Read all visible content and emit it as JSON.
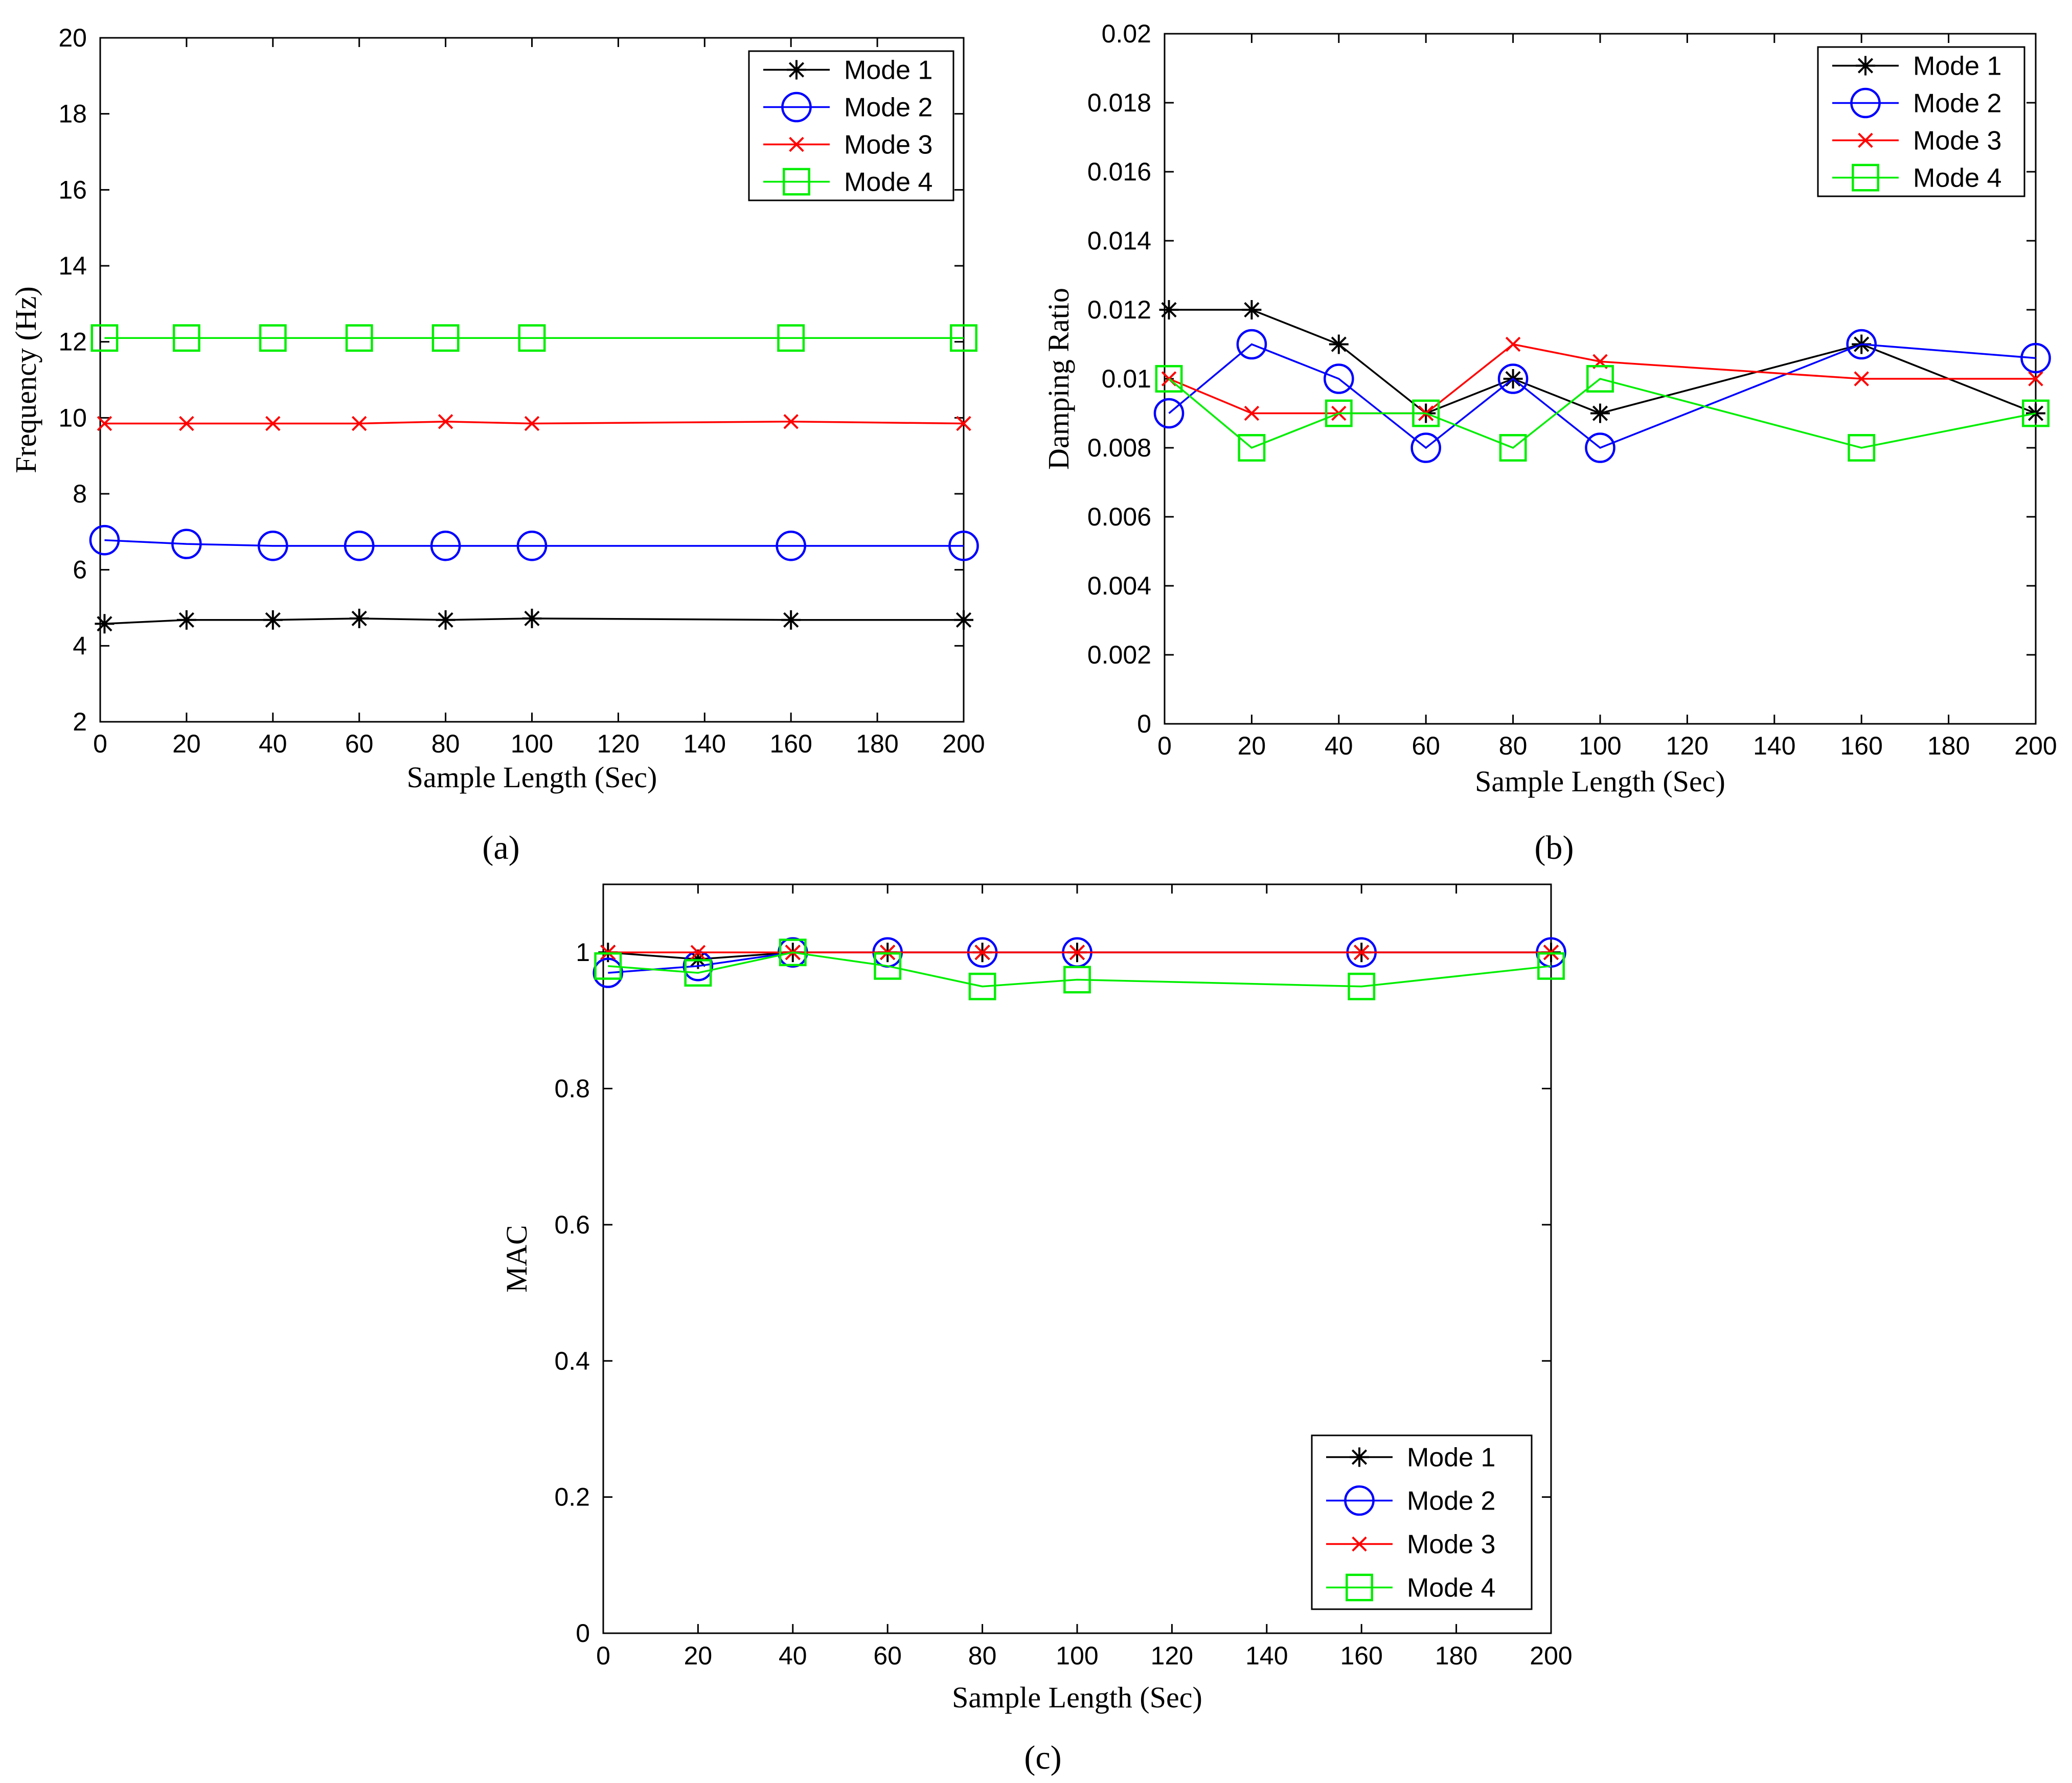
{
  "chart_data": [
    {
      "type": "line",
      "panel_label": "(a)",
      "xlabel": "Sample Length (Sec)",
      "ylabel": "Frequency (Hz)",
      "xlim": [
        0,
        200
      ],
      "ylim": [
        2,
        20
      ],
      "xticks": [
        0,
        20,
        40,
        60,
        80,
        100,
        120,
        140,
        160,
        180,
        200
      ],
      "yticks": [
        2,
        4,
        6,
        8,
        10,
        12,
        14,
        16,
        18,
        20
      ],
      "x": [
        1,
        20,
        40,
        60,
        80,
        100,
        160,
        200
      ],
      "legend_position": "top-right",
      "series": [
        {
          "name": "Mode 1",
          "color": "#000000",
          "marker": "star",
          "values": [
            4.58,
            4.68,
            4.68,
            4.72,
            4.68,
            4.72,
            4.68,
            4.68
          ]
        },
        {
          "name": "Mode 2",
          "color": "#0000ff",
          "marker": "circle",
          "values": [
            6.78,
            6.68,
            6.63,
            6.63,
            6.63,
            6.63,
            6.63,
            6.63
          ]
        },
        {
          "name": "Mode 3",
          "color": "#ff0000",
          "marker": "x",
          "values": [
            9.85,
            9.85,
            9.85,
            9.85,
            9.9,
            9.85,
            9.9,
            9.85
          ]
        },
        {
          "name": "Mode 4",
          "color": "#00ee00",
          "marker": "square",
          "values": [
            12.1,
            12.1,
            12.1,
            12.1,
            12.1,
            12.1,
            12.1,
            12.1
          ]
        }
      ]
    },
    {
      "type": "line",
      "panel_label": "(b)",
      "xlabel": "Sample Length (Sec)",
      "ylabel": "Damping Ratio",
      "xlim": [
        0,
        200
      ],
      "ylim": [
        0,
        0.02
      ],
      "xticks": [
        0,
        20,
        40,
        60,
        80,
        100,
        120,
        140,
        160,
        180,
        200
      ],
      "yticks": [
        0,
        0.002,
        0.004,
        0.006,
        0.008,
        0.01,
        0.012,
        0.014,
        0.016,
        0.018,
        0.02
      ],
      "x": [
        1,
        20,
        40,
        60,
        80,
        100,
        160,
        200
      ],
      "legend_position": "top-right",
      "series": [
        {
          "name": "Mode 1",
          "color": "#000000",
          "marker": "star",
          "values": [
            0.012,
            0.012,
            0.011,
            0.009,
            0.01,
            0.009,
            0.011,
            0.009
          ]
        },
        {
          "name": "Mode 2",
          "color": "#0000ff",
          "marker": "circle",
          "values": [
            0.009,
            0.011,
            0.01,
            0.008,
            0.01,
            0.008,
            0.011,
            0.0106
          ]
        },
        {
          "name": "Mode 3",
          "color": "#ff0000",
          "marker": "x",
          "values": [
            0.01,
            0.009,
            0.009,
            0.009,
            0.011,
            0.0105,
            0.01,
            0.01
          ]
        },
        {
          "name": "Mode 4",
          "color": "#00ee00",
          "marker": "square",
          "values": [
            0.01,
            0.008,
            0.009,
            0.009,
            0.008,
            0.01,
            0.008,
            0.009
          ]
        }
      ]
    },
    {
      "type": "line",
      "panel_label": "(c)",
      "xlabel": "Sample Length (Sec)",
      "ylabel": "MAC",
      "xlim": [
        0,
        200
      ],
      "ylim": [
        0,
        1.1
      ],
      "xticks": [
        0,
        20,
        40,
        60,
        80,
        100,
        120,
        140,
        160,
        180,
        200
      ],
      "yticks": [
        0,
        0.2,
        0.4,
        0.6,
        0.8,
        1
      ],
      "x": [
        1,
        20,
        40,
        60,
        80,
        100,
        160,
        200
      ],
      "legend_position": "bottom-right",
      "series": [
        {
          "name": "Mode 1",
          "color": "#000000",
          "marker": "star",
          "values": [
            1.0,
            0.99,
            1.0,
            1.0,
            1.0,
            1.0,
            1.0,
            1.0
          ]
        },
        {
          "name": "Mode 2",
          "color": "#0000ff",
          "marker": "circle",
          "values": [
            0.97,
            0.98,
            1.0,
            1.0,
            1.0,
            1.0,
            1.0,
            1.0
          ]
        },
        {
          "name": "Mode 3",
          "color": "#ff0000",
          "marker": "x",
          "values": [
            1.0,
            1.0,
            1.0,
            1.0,
            1.0,
            1.0,
            1.0,
            1.0
          ]
        },
        {
          "name": "Mode 4",
          "color": "#00ee00",
          "marker": "square",
          "values": [
            0.98,
            0.97,
            1.0,
            0.98,
            0.95,
            0.96,
            0.95,
            0.98
          ]
        }
      ]
    }
  ]
}
